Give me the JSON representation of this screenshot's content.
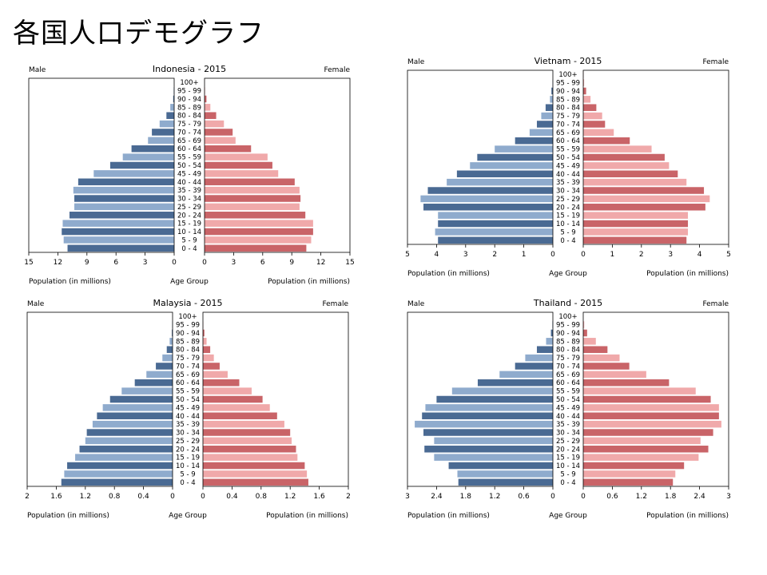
{
  "slide": {
    "title": "各国人口デモグラフ"
  },
  "labels": {
    "male": "Male",
    "female": "Female",
    "pop_left": "Population (in millions)",
    "pop_right": "Population (in millions)",
    "age_group": "Age Group"
  },
  "colors": {
    "male_dark": "#4a6a93",
    "male_light": "#8fabcd",
    "female_dark": "#c96468",
    "female_light": "#f0a9aa"
  },
  "age_groups": [
    "0 - 4",
    "5 - 9",
    "10 - 14",
    "15 - 19",
    "20 - 24",
    "25 - 29",
    "30 - 34",
    "35 - 39",
    "40 - 44",
    "45 - 49",
    "50 - 54",
    "55 - 59",
    "60 - 64",
    "65 - 69",
    "70 - 74",
    "75 - 79",
    "80 - 84",
    "85 - 89",
    "90 - 94",
    "95 - 99",
    "100+"
  ],
  "chart_data": [
    {
      "type": "bar",
      "title": "Indonesia - 2015",
      "xlabel": "Population (in millions)",
      "ylabel": "Age Group",
      "xlim": [
        0,
        15
      ],
      "ticks": [
        "15",
        "12",
        "9",
        "6",
        "3",
        "0"
      ],
      "ticks_right": [
        "0",
        "3",
        "6",
        "9",
        "12",
        "15"
      ],
      "categories": [
        "0 - 4",
        "5 - 9",
        "10 - 14",
        "15 - 19",
        "20 - 24",
        "25 - 29",
        "30 - 34",
        "35 - 39",
        "40 - 44",
        "45 - 49",
        "50 - 54",
        "55 - 59",
        "60 - 64",
        "65 - 69",
        "70 - 74",
        "75 - 79",
        "80 - 84",
        "85 - 89",
        "90 - 94",
        "95 - 99",
        "100+"
      ],
      "series": [
        {
          "name": "Male",
          "values": [
            11.0,
            11.4,
            11.6,
            11.5,
            10.8,
            10.3,
            10.3,
            10.4,
            9.9,
            8.3,
            6.6,
            5.3,
            4.4,
            2.7,
            2.3,
            1.5,
            0.8,
            0.4,
            0.1,
            0.05,
            0.01
          ]
        },
        {
          "name": "Female",
          "values": [
            10.5,
            11.0,
            11.2,
            11.2,
            10.4,
            9.8,
            9.9,
            9.8,
            9.3,
            7.6,
            7.0,
            6.5,
            4.8,
            3.2,
            2.9,
            2.0,
            1.2,
            0.6,
            0.2,
            0.05,
            0.01
          ]
        }
      ]
    },
    {
      "type": "bar",
      "title": "Vietnam - 2015",
      "xlabel": "Population (in millions)",
      "ylabel": "Age Group",
      "xlim": [
        0,
        5
      ],
      "ticks": [
        "5",
        "4",
        "3",
        "2",
        "1",
        "0"
      ],
      "ticks_right": [
        "0",
        "1",
        "2",
        "3",
        "4",
        "5"
      ],
      "categories": [
        "0 - 4",
        "5 - 9",
        "10 - 14",
        "15 - 19",
        "20 - 24",
        "25 - 29",
        "30 - 34",
        "35 - 39",
        "40 - 44",
        "45 - 49",
        "50 - 54",
        "55 - 59",
        "60 - 64",
        "65 - 69",
        "70 - 74",
        "75 - 79",
        "80 - 84",
        "85 - 89",
        "90 - 94",
        "95 - 99",
        "100+"
      ],
      "series": [
        {
          "name": "Male",
          "values": [
            3.95,
            4.05,
            3.95,
            3.95,
            4.45,
            4.55,
            4.3,
            3.65,
            3.3,
            2.85,
            2.6,
            2.0,
            1.3,
            0.8,
            0.55,
            0.4,
            0.25,
            0.1,
            0.05,
            0.01,
            0.0
          ]
        },
        {
          "name": "Female",
          "values": [
            3.55,
            3.6,
            3.6,
            3.6,
            4.2,
            4.35,
            4.15,
            3.55,
            3.25,
            2.95,
            2.8,
            2.35,
            1.6,
            1.05,
            0.75,
            0.65,
            0.45,
            0.25,
            0.1,
            0.03,
            0.01
          ]
        }
      ]
    },
    {
      "type": "bar",
      "title": "Malaysia - 2015",
      "xlabel": "Population (in millions)",
      "ylabel": "Age Group",
      "xlim": [
        0,
        2
      ],
      "ticks": [
        "2",
        "1.6",
        "1.2",
        "0.8",
        "0.4",
        "0"
      ],
      "ticks_right": [
        "0",
        "0.4",
        "0.8",
        "1.2",
        "1.6",
        "2"
      ],
      "categories": [
        "0 - 4",
        "5 - 9",
        "10 - 14",
        "15 - 19",
        "20 - 24",
        "25 - 29",
        "30 - 34",
        "35 - 39",
        "40 - 44",
        "45 - 49",
        "50 - 54",
        "55 - 59",
        "60 - 64",
        "65 - 69",
        "70 - 74",
        "75 - 79",
        "80 - 84",
        "85 - 89",
        "90 - 94",
        "95 - 99",
        "100+"
      ],
      "series": [
        {
          "name": "Male",
          "values": [
            1.53,
            1.49,
            1.45,
            1.34,
            1.28,
            1.2,
            1.18,
            1.1,
            1.04,
            0.96,
            0.86,
            0.7,
            0.52,
            0.36,
            0.23,
            0.14,
            0.08,
            0.04,
            0.01,
            0.005,
            0.0
          ]
        },
        {
          "name": "Female",
          "values": [
            1.45,
            1.43,
            1.4,
            1.3,
            1.28,
            1.22,
            1.2,
            1.12,
            1.02,
            0.92,
            0.82,
            0.67,
            0.5,
            0.34,
            0.23,
            0.15,
            0.1,
            0.05,
            0.02,
            0.005,
            0.0
          ]
        }
      ]
    },
    {
      "type": "bar",
      "title": "Thailand - 2015",
      "xlabel": "Population (in millions)",
      "ylabel": "Age Group",
      "xlim": [
        0,
        3
      ],
      "ticks": [
        "3",
        "2.4",
        "1.8",
        "1.2",
        "0.6",
        "0"
      ],
      "ticks_right": [
        "0",
        "0.6",
        "1.2",
        "1.8",
        "2.4",
        "3"
      ],
      "categories": [
        "0 - 4",
        "5 - 9",
        "10 - 14",
        "15 - 19",
        "20 - 24",
        "25 - 29",
        "30 - 34",
        "35 - 39",
        "40 - 44",
        "45 - 49",
        "50 - 54",
        "55 - 59",
        "60 - 64",
        "65 - 69",
        "70 - 74",
        "75 - 79",
        "80 - 84",
        "85 - 89",
        "90 - 94",
        "95 - 99",
        "100+"
      ],
      "series": [
        {
          "name": "Male",
          "values": [
            1.95,
            1.97,
            2.15,
            2.45,
            2.65,
            2.45,
            2.67,
            2.85,
            2.7,
            2.63,
            2.4,
            2.08,
            1.55,
            1.1,
            0.78,
            0.57,
            0.33,
            0.14,
            0.04,
            0.01,
            0.0
          ]
        },
        {
          "name": "Female",
          "values": [
            1.85,
            1.9,
            2.08,
            2.38,
            2.58,
            2.42,
            2.68,
            2.85,
            2.8,
            2.8,
            2.63,
            2.32,
            1.77,
            1.3,
            0.95,
            0.75,
            0.5,
            0.26,
            0.08,
            0.02,
            0.0
          ]
        }
      ]
    }
  ]
}
